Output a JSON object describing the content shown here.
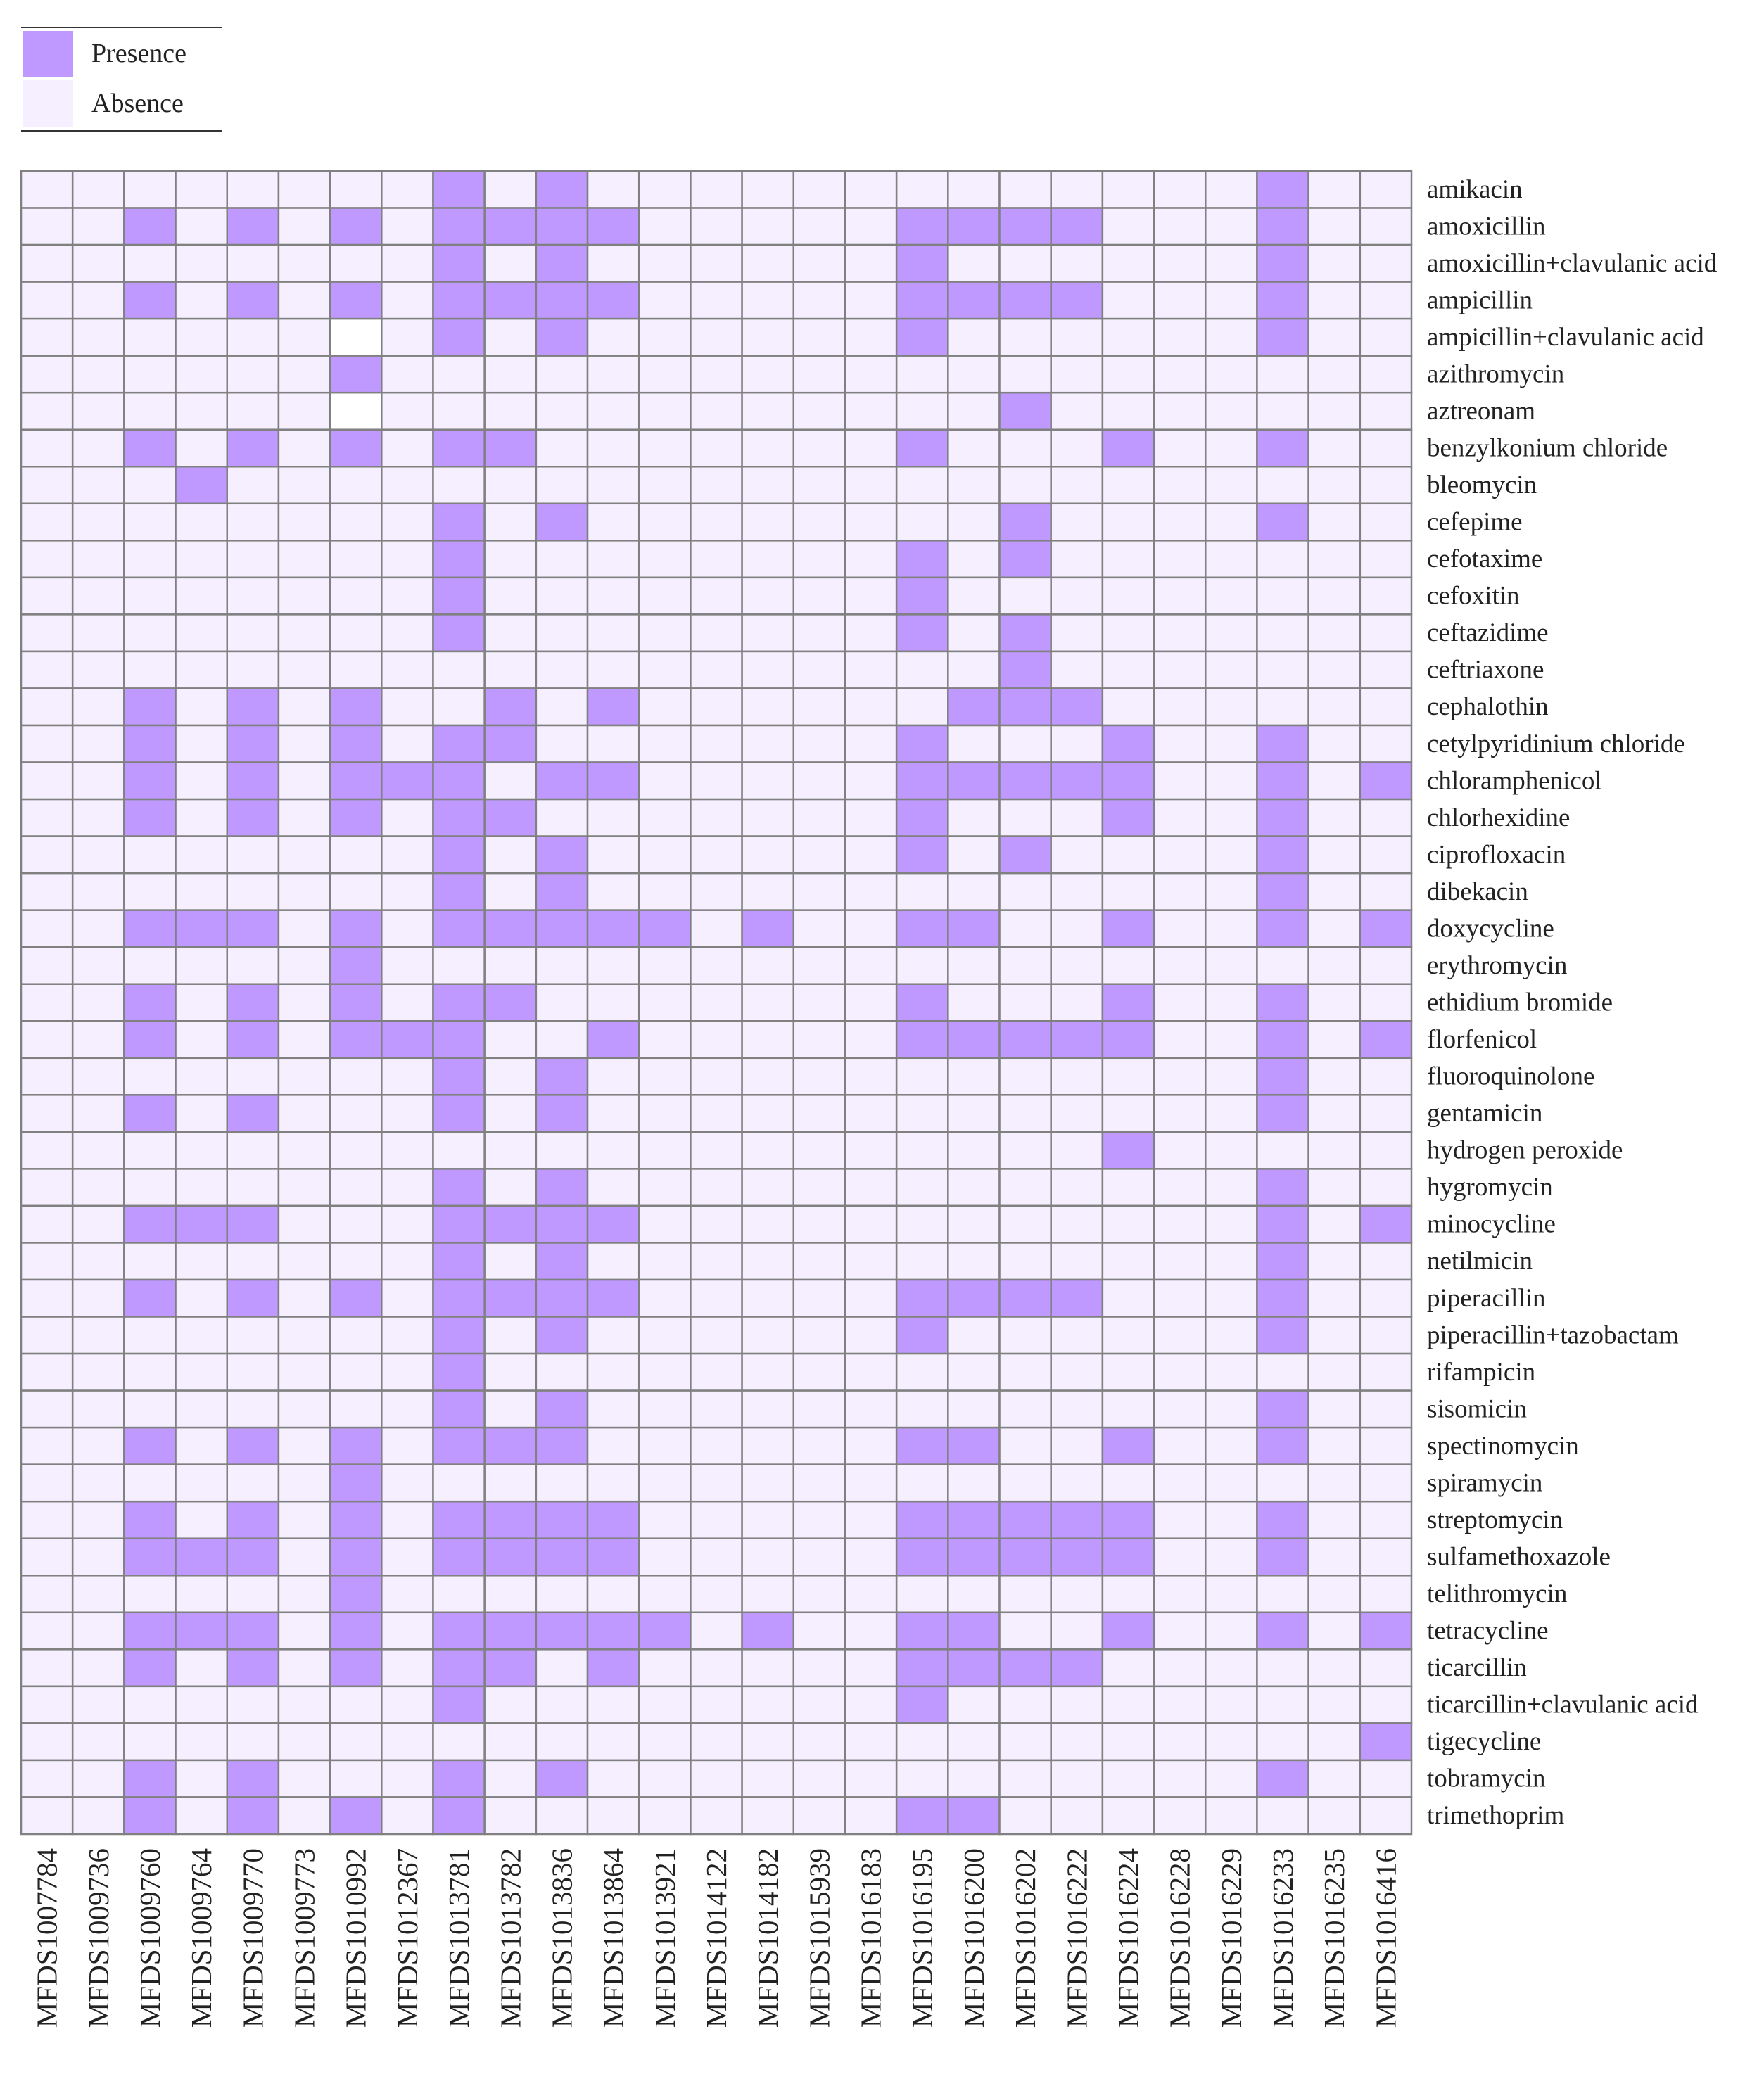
{
  "chart_data": {
    "type": "heatmap",
    "legend": {
      "entries": [
        {
          "label": "Presence",
          "color": "#bf99ff"
        },
        {
          "label": "Absence",
          "color": "#f5efff"
        }
      ],
      "placement": "top-left"
    },
    "colors": {
      "presence": "#bf99ff",
      "absence": "#f5efff",
      "missing": "#ffffff",
      "grid": "#808080"
    },
    "columns": [
      "MFDS1007784",
      "MFDS1009736",
      "MFDS1009760",
      "MFDS1009764",
      "MFDS1009770",
      "MFDS1009773",
      "MFDS1010992",
      "MFDS1012367",
      "MFDS1013781",
      "MFDS1013782",
      "MFDS1013836",
      "MFDS1013864",
      "MFDS1013921",
      "MFDS1014122",
      "MFDS1014182",
      "MFDS1015939",
      "MFDS1016183",
      "MFDS1016195",
      "MFDS1016200",
      "MFDS1016202",
      "MFDS1016222",
      "MFDS1016224",
      "MFDS1016228",
      "MFDS1016229",
      "MFDS1016233",
      "MFDS1016235",
      "MFDS1016416"
    ],
    "rows": [
      "amikacin",
      "amoxicillin",
      "amoxicillin+clavulanic acid",
      "ampicillin",
      "ampicillin+clavulanic acid",
      "azithromycin",
      "aztreonam",
      "benzylkonium chloride",
      "bleomycin",
      "cefepime",
      "cefotaxime",
      "cefoxitin",
      "ceftazidime",
      "ceftriaxone",
      "cephalothin",
      "cetylpyridinium chloride",
      "chloramphenicol",
      "chlorhexidine",
      "ciprofloxacin",
      "dibekacin",
      "doxycycline",
      "erythromycin",
      "ethidium bromide",
      "florfenicol",
      "fluoroquinolone",
      "gentamicin",
      "hydrogen peroxide",
      "hygromycin",
      "minocycline",
      "netilmicin",
      "piperacillin",
      "piperacillin+tazobactam",
      "rifampicin",
      "sisomicin",
      "spectinomycin",
      "spiramycin",
      "streptomycin",
      "sulfamethoxazole",
      "telithromycin",
      "tetracycline",
      "ticarcillin",
      "ticarcillin+clavulanic acid",
      "tigecycline",
      "tobramycin",
      "trimethoprim"
    ],
    "values": [
      [
        0,
        0,
        0,
        0,
        0,
        0,
        0,
        0,
        1,
        0,
        1,
        0,
        0,
        0,
        0,
        0,
        0,
        0,
        0,
        0,
        0,
        0,
        0,
        0,
        1,
        0,
        0
      ],
      [
        0,
        0,
        1,
        0,
        1,
        0,
        1,
        0,
        1,
        1,
        1,
        1,
        0,
        0,
        0,
        0,
        0,
        1,
        1,
        1,
        1,
        0,
        0,
        0,
        1,
        0,
        0
      ],
      [
        0,
        0,
        0,
        0,
        0,
        0,
        0,
        0,
        1,
        0,
        1,
        0,
        0,
        0,
        0,
        0,
        0,
        1,
        0,
        0,
        0,
        0,
        0,
        0,
        1,
        0,
        0
      ],
      [
        0,
        0,
        1,
        0,
        1,
        0,
        1,
        0,
        1,
        1,
        1,
        1,
        0,
        0,
        0,
        0,
        0,
        1,
        1,
        1,
        1,
        0,
        0,
        0,
        1,
        0,
        0
      ],
      [
        0,
        0,
        0,
        0,
        0,
        0,
        null,
        0,
        1,
        0,
        1,
        0,
        0,
        0,
        0,
        0,
        0,
        1,
        0,
        0,
        0,
        0,
        0,
        0,
        1,
        0,
        0
      ],
      [
        0,
        0,
        0,
        0,
        0,
        0,
        1,
        0,
        0,
        0,
        0,
        0,
        0,
        0,
        0,
        0,
        0,
        0,
        0,
        0,
        0,
        0,
        0,
        0,
        0,
        0,
        0
      ],
      [
        0,
        0,
        0,
        0,
        0,
        0,
        null,
        0,
        0,
        0,
        0,
        0,
        0,
        0,
        0,
        0,
        0,
        0,
        0,
        1,
        0,
        0,
        0,
        0,
        0,
        0,
        0
      ],
      [
        0,
        0,
        1,
        0,
        1,
        0,
        1,
        0,
        1,
        1,
        0,
        0,
        0,
        0,
        0,
        0,
        0,
        1,
        0,
        0,
        0,
        1,
        0,
        0,
        1,
        0,
        0
      ],
      [
        0,
        0,
        0,
        1,
        0,
        0,
        0,
        0,
        0,
        0,
        0,
        0,
        0,
        0,
        0,
        0,
        0,
        0,
        0,
        0,
        0,
        0,
        0,
        0,
        0,
        0,
        0
      ],
      [
        0,
        0,
        0,
        0,
        0,
        0,
        0,
        0,
        1,
        0,
        1,
        0,
        0,
        0,
        0,
        0,
        0,
        0,
        0,
        1,
        0,
        0,
        0,
        0,
        1,
        0,
        0
      ],
      [
        0,
        0,
        0,
        0,
        0,
        0,
        0,
        0,
        1,
        0,
        0,
        0,
        0,
        0,
        0,
        0,
        0,
        1,
        0,
        1,
        0,
        0,
        0,
        0,
        0,
        0,
        0
      ],
      [
        0,
        0,
        0,
        0,
        0,
        0,
        0,
        0,
        1,
        0,
        0,
        0,
        0,
        0,
        0,
        0,
        0,
        1,
        0,
        0,
        0,
        0,
        0,
        0,
        0,
        0,
        0
      ],
      [
        0,
        0,
        0,
        0,
        0,
        0,
        0,
        0,
        1,
        0,
        0,
        0,
        0,
        0,
        0,
        0,
        0,
        1,
        0,
        1,
        0,
        0,
        0,
        0,
        0,
        0,
        0
      ],
      [
        0,
        0,
        0,
        0,
        0,
        0,
        0,
        0,
        0,
        0,
        0,
        0,
        0,
        0,
        0,
        0,
        0,
        0,
        0,
        1,
        0,
        0,
        0,
        0,
        0,
        0,
        0
      ],
      [
        0,
        0,
        1,
        0,
        1,
        0,
        1,
        0,
        0,
        1,
        0,
        1,
        0,
        0,
        0,
        0,
        0,
        0,
        1,
        1,
        1,
        0,
        0,
        0,
        0,
        0,
        0
      ],
      [
        0,
        0,
        1,
        0,
        1,
        0,
        1,
        0,
        1,
        1,
        0,
        0,
        0,
        0,
        0,
        0,
        0,
        1,
        0,
        0,
        0,
        1,
        0,
        0,
        1,
        0,
        0
      ],
      [
        0,
        0,
        1,
        0,
        1,
        0,
        1,
        1,
        1,
        0,
        1,
        1,
        0,
        0,
        0,
        0,
        0,
        1,
        1,
        1,
        1,
        1,
        0,
        0,
        1,
        0,
        1
      ],
      [
        0,
        0,
        1,
        0,
        1,
        0,
        1,
        0,
        1,
        1,
        0,
        0,
        0,
        0,
        0,
        0,
        0,
        1,
        0,
        0,
        0,
        1,
        0,
        0,
        1,
        0,
        0
      ],
      [
        0,
        0,
        0,
        0,
        0,
        0,
        0,
        0,
        1,
        0,
        1,
        0,
        0,
        0,
        0,
        0,
        0,
        1,
        0,
        1,
        0,
        0,
        0,
        0,
        1,
        0,
        0
      ],
      [
        0,
        0,
        0,
        0,
        0,
        0,
        0,
        0,
        1,
        0,
        1,
        0,
        0,
        0,
        0,
        0,
        0,
        0,
        0,
        0,
        0,
        0,
        0,
        0,
        1,
        0,
        0
      ],
      [
        0,
        0,
        1,
        1,
        1,
        0,
        1,
        0,
        1,
        1,
        1,
        1,
        1,
        0,
        1,
        0,
        0,
        1,
        1,
        0,
        0,
        1,
        0,
        0,
        1,
        0,
        1
      ],
      [
        0,
        0,
        0,
        0,
        0,
        0,
        1,
        0,
        0,
        0,
        0,
        0,
        0,
        0,
        0,
        0,
        0,
        0,
        0,
        0,
        0,
        0,
        0,
        0,
        0,
        0,
        0
      ],
      [
        0,
        0,
        1,
        0,
        1,
        0,
        1,
        0,
        1,
        1,
        0,
        0,
        0,
        0,
        0,
        0,
        0,
        1,
        0,
        0,
        0,
        1,
        0,
        0,
        1,
        0,
        0
      ],
      [
        0,
        0,
        1,
        0,
        1,
        0,
        1,
        1,
        1,
        0,
        0,
        1,
        0,
        0,
        0,
        0,
        0,
        1,
        1,
        1,
        1,
        1,
        0,
        0,
        1,
        0,
        1
      ],
      [
        0,
        0,
        0,
        0,
        0,
        0,
        0,
        0,
        1,
        0,
        1,
        0,
        0,
        0,
        0,
        0,
        0,
        0,
        0,
        0,
        0,
        0,
        0,
        0,
        1,
        0,
        0
      ],
      [
        0,
        0,
        1,
        0,
        1,
        0,
        0,
        0,
        1,
        0,
        1,
        0,
        0,
        0,
        0,
        0,
        0,
        0,
        0,
        0,
        0,
        0,
        0,
        0,
        1,
        0,
        0
      ],
      [
        0,
        0,
        0,
        0,
        0,
        0,
        0,
        0,
        0,
        0,
        0,
        0,
        0,
        0,
        0,
        0,
        0,
        0,
        0,
        0,
        0,
        1,
        0,
        0,
        0,
        0,
        0
      ],
      [
        0,
        0,
        0,
        0,
        0,
        0,
        0,
        0,
        1,
        0,
        1,
        0,
        0,
        0,
        0,
        0,
        0,
        0,
        0,
        0,
        0,
        0,
        0,
        0,
        1,
        0,
        0
      ],
      [
        0,
        0,
        1,
        1,
        1,
        0,
        0,
        0,
        1,
        1,
        1,
        1,
        0,
        0,
        0,
        0,
        0,
        0,
        0,
        0,
        0,
        0,
        0,
        0,
        1,
        0,
        1
      ],
      [
        0,
        0,
        0,
        0,
        0,
        0,
        0,
        0,
        1,
        0,
        1,
        0,
        0,
        0,
        0,
        0,
        0,
        0,
        0,
        0,
        0,
        0,
        0,
        0,
        1,
        0,
        0
      ],
      [
        0,
        0,
        1,
        0,
        1,
        0,
        1,
        0,
        1,
        1,
        1,
        1,
        0,
        0,
        0,
        0,
        0,
        1,
        1,
        1,
        1,
        0,
        0,
        0,
        1,
        0,
        0
      ],
      [
        0,
        0,
        0,
        0,
        0,
        0,
        0,
        0,
        1,
        0,
        1,
        0,
        0,
        0,
        0,
        0,
        0,
        1,
        0,
        0,
        0,
        0,
        0,
        0,
        1,
        0,
        0
      ],
      [
        0,
        0,
        0,
        0,
        0,
        0,
        0,
        0,
        1,
        0,
        0,
        0,
        0,
        0,
        0,
        0,
        0,
        0,
        0,
        0,
        0,
        0,
        0,
        0,
        0,
        0,
        0
      ],
      [
        0,
        0,
        0,
        0,
        0,
        0,
        0,
        0,
        1,
        0,
        1,
        0,
        0,
        0,
        0,
        0,
        0,
        0,
        0,
        0,
        0,
        0,
        0,
        0,
        1,
        0,
        0
      ],
      [
        0,
        0,
        1,
        0,
        1,
        0,
        1,
        0,
        1,
        1,
        1,
        0,
        0,
        0,
        0,
        0,
        0,
        1,
        1,
        0,
        0,
        1,
        0,
        0,
        1,
        0,
        0
      ],
      [
        0,
        0,
        0,
        0,
        0,
        0,
        1,
        0,
        0,
        0,
        0,
        0,
        0,
        0,
        0,
        0,
        0,
        0,
        0,
        0,
        0,
        0,
        0,
        0,
        0,
        0,
        0
      ],
      [
        0,
        0,
        1,
        0,
        1,
        0,
        1,
        0,
        1,
        1,
        1,
        1,
        0,
        0,
        0,
        0,
        0,
        1,
        1,
        1,
        1,
        1,
        0,
        0,
        1,
        0,
        0
      ],
      [
        0,
        0,
        1,
        1,
        1,
        0,
        1,
        0,
        1,
        1,
        1,
        1,
        0,
        0,
        0,
        0,
        0,
        1,
        1,
        1,
        1,
        1,
        0,
        0,
        1,
        0,
        0
      ],
      [
        0,
        0,
        0,
        0,
        0,
        0,
        1,
        0,
        0,
        0,
        0,
        0,
        0,
        0,
        0,
        0,
        0,
        0,
        0,
        0,
        0,
        0,
        0,
        0,
        0,
        0,
        0
      ],
      [
        0,
        0,
        1,
        1,
        1,
        0,
        1,
        0,
        1,
        1,
        1,
        1,
        1,
        0,
        1,
        0,
        0,
        1,
        1,
        0,
        0,
        1,
        0,
        0,
        1,
        0,
        1
      ],
      [
        0,
        0,
        1,
        0,
        1,
        0,
        1,
        0,
        1,
        1,
        0,
        1,
        0,
        0,
        0,
        0,
        0,
        1,
        1,
        1,
        1,
        0,
        0,
        0,
        0,
        0,
        0
      ],
      [
        0,
        0,
        0,
        0,
        0,
        0,
        0,
        0,
        1,
        0,
        0,
        0,
        0,
        0,
        0,
        0,
        0,
        1,
        0,
        0,
        0,
        0,
        0,
        0,
        0,
        0,
        0
      ],
      [
        0,
        0,
        0,
        0,
        0,
        0,
        0,
        0,
        0,
        0,
        0,
        0,
        0,
        0,
        0,
        0,
        0,
        0,
        0,
        0,
        0,
        0,
        0,
        0,
        0,
        0,
        1
      ],
      [
        0,
        0,
        1,
        0,
        1,
        0,
        0,
        0,
        1,
        0,
        1,
        0,
        0,
        0,
        0,
        0,
        0,
        0,
        0,
        0,
        0,
        0,
        0,
        0,
        1,
        0,
        0
      ],
      [
        0,
        0,
        1,
        0,
        1,
        0,
        1,
        0,
        1,
        0,
        0,
        0,
        0,
        0,
        0,
        0,
        0,
        1,
        1,
        0,
        0,
        0,
        0,
        0,
        0,
        0,
        0
      ]
    ]
  }
}
